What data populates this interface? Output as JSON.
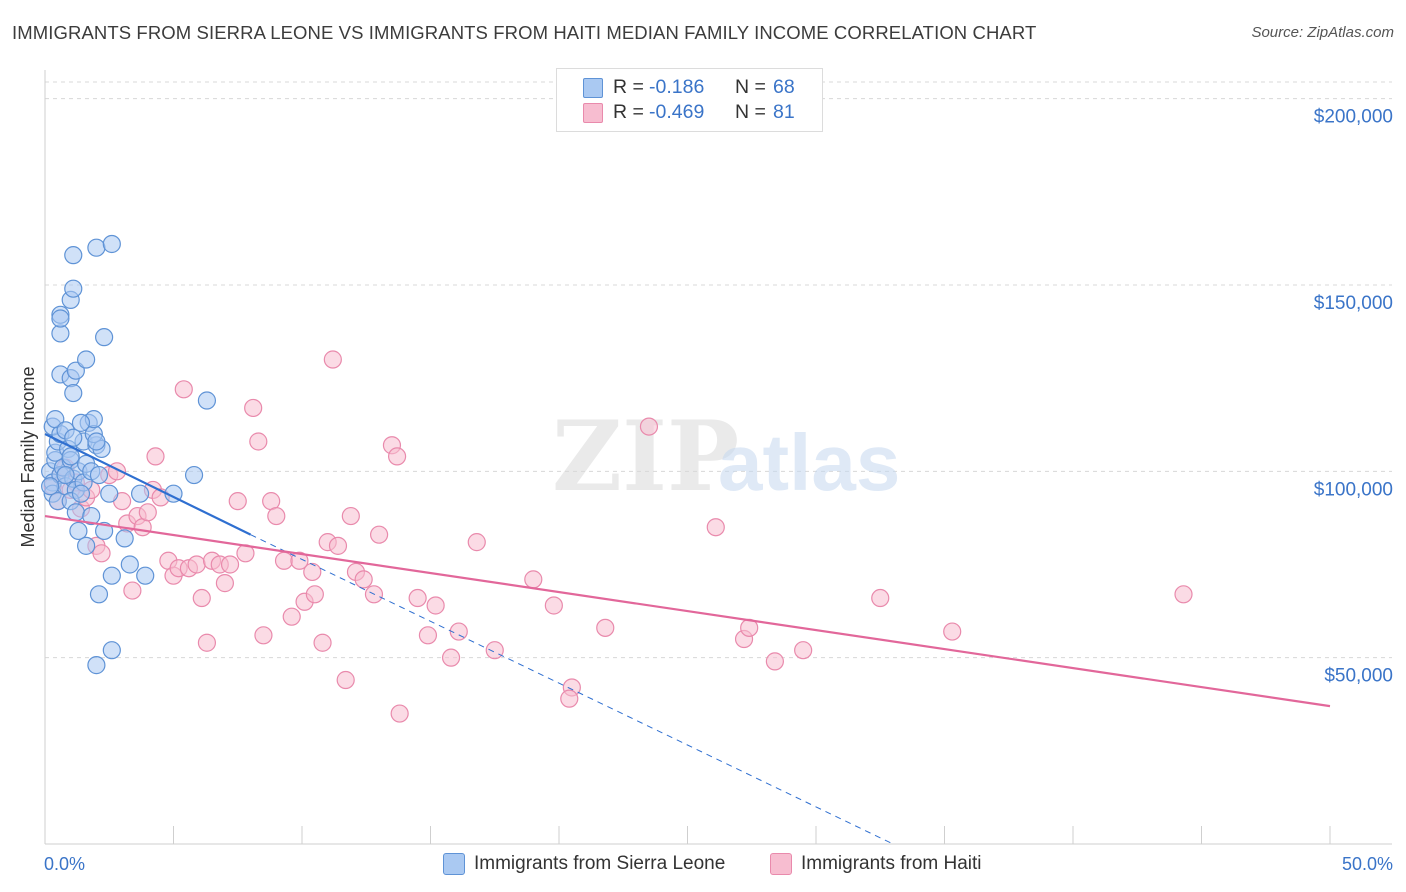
{
  "title": "IMMIGRANTS FROM SIERRA LEONE VS IMMIGRANTS FROM HAITI MEDIAN FAMILY INCOME CORRELATION CHART",
  "source": "Source: ZipAtlas.com",
  "watermark": {
    "zip": "ZIP",
    "atlas": "atlas"
  },
  "legend": {
    "rows": [
      {
        "r_label": "R =",
        "r_value": "-0.186",
        "n_label": "N =",
        "n_value": "68"
      },
      {
        "r_label": "R =",
        "r_value": "-0.469",
        "n_label": "N =",
        "n_value": "81"
      }
    ]
  },
  "bottom_legend": [
    "Immigrants from Sierra Leone",
    "Immigrants from Haiti"
  ],
  "colors": {
    "blue_fill": "#aac9f2",
    "blue_stroke": "#5f93d6",
    "blue_line": "#2f6fd0",
    "pink_fill": "#f7bdd0",
    "pink_stroke": "#e98aac",
    "pink_line": "#e2679a",
    "tick_text": "#3a74c8",
    "grid": "#d8d8d8"
  },
  "chart_data": {
    "type": "scatter",
    "title": "IMMIGRANTS FROM SIERRA LEONE VS IMMIGRANTS FROM HAITI MEDIAN FAMILY INCOME CORRELATION CHART",
    "xlabel": "",
    "ylabel": "Median Family Income",
    "xlim": [
      0,
      50
    ],
    "ylim": [
      0,
      205000
    ],
    "x_tick_labels": [
      "0.0%",
      "50.0%"
    ],
    "y_ticks": [
      50000,
      100000,
      150000,
      200000
    ],
    "y_tick_labels": [
      "$50,000",
      "$100,000",
      "$150,000",
      "$200,000"
    ],
    "series": [
      {
        "name": "Immigrants from Sierra Leone",
        "color": "#5f93d6",
        "points": [
          [
            0.2,
            100000
          ],
          [
            0.3,
            97000
          ],
          [
            0.4,
            103000
          ],
          [
            0.3,
            94000
          ],
          [
            0.5,
            92000
          ],
          [
            0.6,
            99000
          ],
          [
            0.4,
            105000
          ],
          [
            0.7,
            101000
          ],
          [
            0.5,
            108000
          ],
          [
            0.8,
            96000
          ],
          [
            0.3,
            112000
          ],
          [
            0.6,
            110000
          ],
          [
            0.9,
            106000
          ],
          [
            0.4,
            114000
          ],
          [
            1.0,
            103000
          ],
          [
            1.1,
            98000
          ],
          [
            0.8,
            111000
          ],
          [
            1.2,
            95000
          ],
          [
            1.3,
            100000
          ],
          [
            1.5,
            97000
          ],
          [
            1.0,
            92000
          ],
          [
            1.2,
            89000
          ],
          [
            1.4,
            94000
          ],
          [
            1.6,
            102000
          ],
          [
            1.8,
            100000
          ],
          [
            1.5,
            108000
          ],
          [
            1.7,
            113000
          ],
          [
            2.0,
            107000
          ],
          [
            1.9,
            110000
          ],
          [
            2.1,
            99000
          ],
          [
            1.3,
            84000
          ],
          [
            1.6,
            80000
          ],
          [
            1.8,
            88000
          ],
          [
            2.3,
            84000
          ],
          [
            2.5,
            94000
          ],
          [
            2.2,
            106000
          ],
          [
            2.6,
            72000
          ],
          [
            3.1,
            82000
          ],
          [
            3.3,
            75000
          ],
          [
            3.9,
            72000
          ],
          [
            3.7,
            94000
          ],
          [
            5.0,
            94000
          ],
          [
            5.8,
            99000
          ],
          [
            6.3,
            119000
          ],
          [
            0.6,
            126000
          ],
          [
            1.0,
            125000
          ],
          [
            1.1,
            121000
          ],
          [
            1.2,
            127000
          ],
          [
            1.6,
            130000
          ],
          [
            2.3,
            136000
          ],
          [
            0.6,
            137000
          ],
          [
            0.6,
            142000
          ],
          [
            0.6,
            141000
          ],
          [
            1.0,
            146000
          ],
          [
            1.1,
            149000
          ],
          [
            1.1,
            158000
          ],
          [
            2.0,
            160000
          ],
          [
            2.6,
            161000
          ],
          [
            1.9,
            114000
          ],
          [
            2.0,
            108000
          ],
          [
            1.1,
            109000
          ],
          [
            0.8,
            99000
          ],
          [
            1.4,
            113000
          ],
          [
            0.2,
            96000
          ],
          [
            2.1,
            67000
          ],
          [
            2.0,
            48000
          ],
          [
            2.6,
            52000
          ],
          [
            1.0,
            104000
          ]
        ]
      },
      {
        "name": "Immigrants from Haiti",
        "color": "#e98aac",
        "points": [
          [
            0.3,
            96000
          ],
          [
            0.5,
            92000
          ],
          [
            0.6,
            99000
          ],
          [
            0.8,
            101000
          ],
          [
            1.0,
            95000
          ],
          [
            1.2,
            97000
          ],
          [
            1.4,
            90000
          ],
          [
            1.6,
            93000
          ],
          [
            1.8,
            95000
          ],
          [
            2.0,
            80000
          ],
          [
            2.2,
            78000
          ],
          [
            2.5,
            99000
          ],
          [
            2.8,
            100000
          ],
          [
            3.0,
            92000
          ],
          [
            3.2,
            86000
          ],
          [
            3.4,
            68000
          ],
          [
            3.6,
            88000
          ],
          [
            3.8,
            85000
          ],
          [
            4.0,
            89000
          ],
          [
            4.2,
            95000
          ],
          [
            4.3,
            104000
          ],
          [
            4.5,
            93000
          ],
          [
            4.8,
            76000
          ],
          [
            5.0,
            72000
          ],
          [
            5.2,
            74000
          ],
          [
            5.4,
            122000
          ],
          [
            5.6,
            74000
          ],
          [
            5.9,
            75000
          ],
          [
            6.1,
            66000
          ],
          [
            6.3,
            54000
          ],
          [
            6.5,
            76000
          ],
          [
            6.8,
            75000
          ],
          [
            7.0,
            70000
          ],
          [
            7.2,
            75000
          ],
          [
            7.5,
            92000
          ],
          [
            7.8,
            78000
          ],
          [
            8.1,
            117000
          ],
          [
            8.3,
            108000
          ],
          [
            8.5,
            56000
          ],
          [
            8.8,
            92000
          ],
          [
            9.0,
            88000
          ],
          [
            9.3,
            76000
          ],
          [
            9.6,
            61000
          ],
          [
            9.9,
            76000
          ],
          [
            10.1,
            65000
          ],
          [
            10.4,
            73000
          ],
          [
            10.5,
            67000
          ],
          [
            10.8,
            54000
          ],
          [
            11.0,
            81000
          ],
          [
            11.2,
            130000
          ],
          [
            11.4,
            80000
          ],
          [
            11.7,
            44000
          ],
          [
            11.9,
            88000
          ],
          [
            12.1,
            73000
          ],
          [
            12.4,
            71000
          ],
          [
            12.8,
            67000
          ],
          [
            13.0,
            83000
          ],
          [
            13.5,
            107000
          ],
          [
            13.7,
            104000
          ],
          [
            13.8,
            35000
          ],
          [
            14.5,
            66000
          ],
          [
            14.9,
            56000
          ],
          [
            15.2,
            64000
          ],
          [
            15.8,
            50000
          ],
          [
            16.1,
            57000
          ],
          [
            16.8,
            81000
          ],
          [
            17.5,
            52000
          ],
          [
            19.0,
            71000
          ],
          [
            19.8,
            64000
          ],
          [
            20.5,
            42000
          ],
          [
            20.4,
            39000
          ],
          [
            21.8,
            58000
          ],
          [
            23.5,
            112000
          ],
          [
            26.1,
            85000
          ],
          [
            27.2,
            55000
          ],
          [
            27.4,
            58000
          ],
          [
            28.4,
            49000
          ],
          [
            29.5,
            52000
          ],
          [
            32.5,
            66000
          ],
          [
            35.3,
            57000
          ],
          [
            44.3,
            67000
          ]
        ]
      }
    ],
    "trendlines": [
      {
        "series": "Immigrants from Sierra Leone",
        "style": "solid",
        "x0": 0.0,
        "y0": 110000,
        "x1": 8.0,
        "y1": 83000
      },
      {
        "series": "Immigrants from Sierra Leone",
        "style": "dashed",
        "x0": 8.0,
        "y0": 83000,
        "x1": 33.0,
        "y1": 0
      },
      {
        "series": "Immigrants from Haiti",
        "style": "solid",
        "x0": 0.0,
        "y0": 88000,
        "x1": 50.0,
        "y1": 37000
      }
    ]
  }
}
